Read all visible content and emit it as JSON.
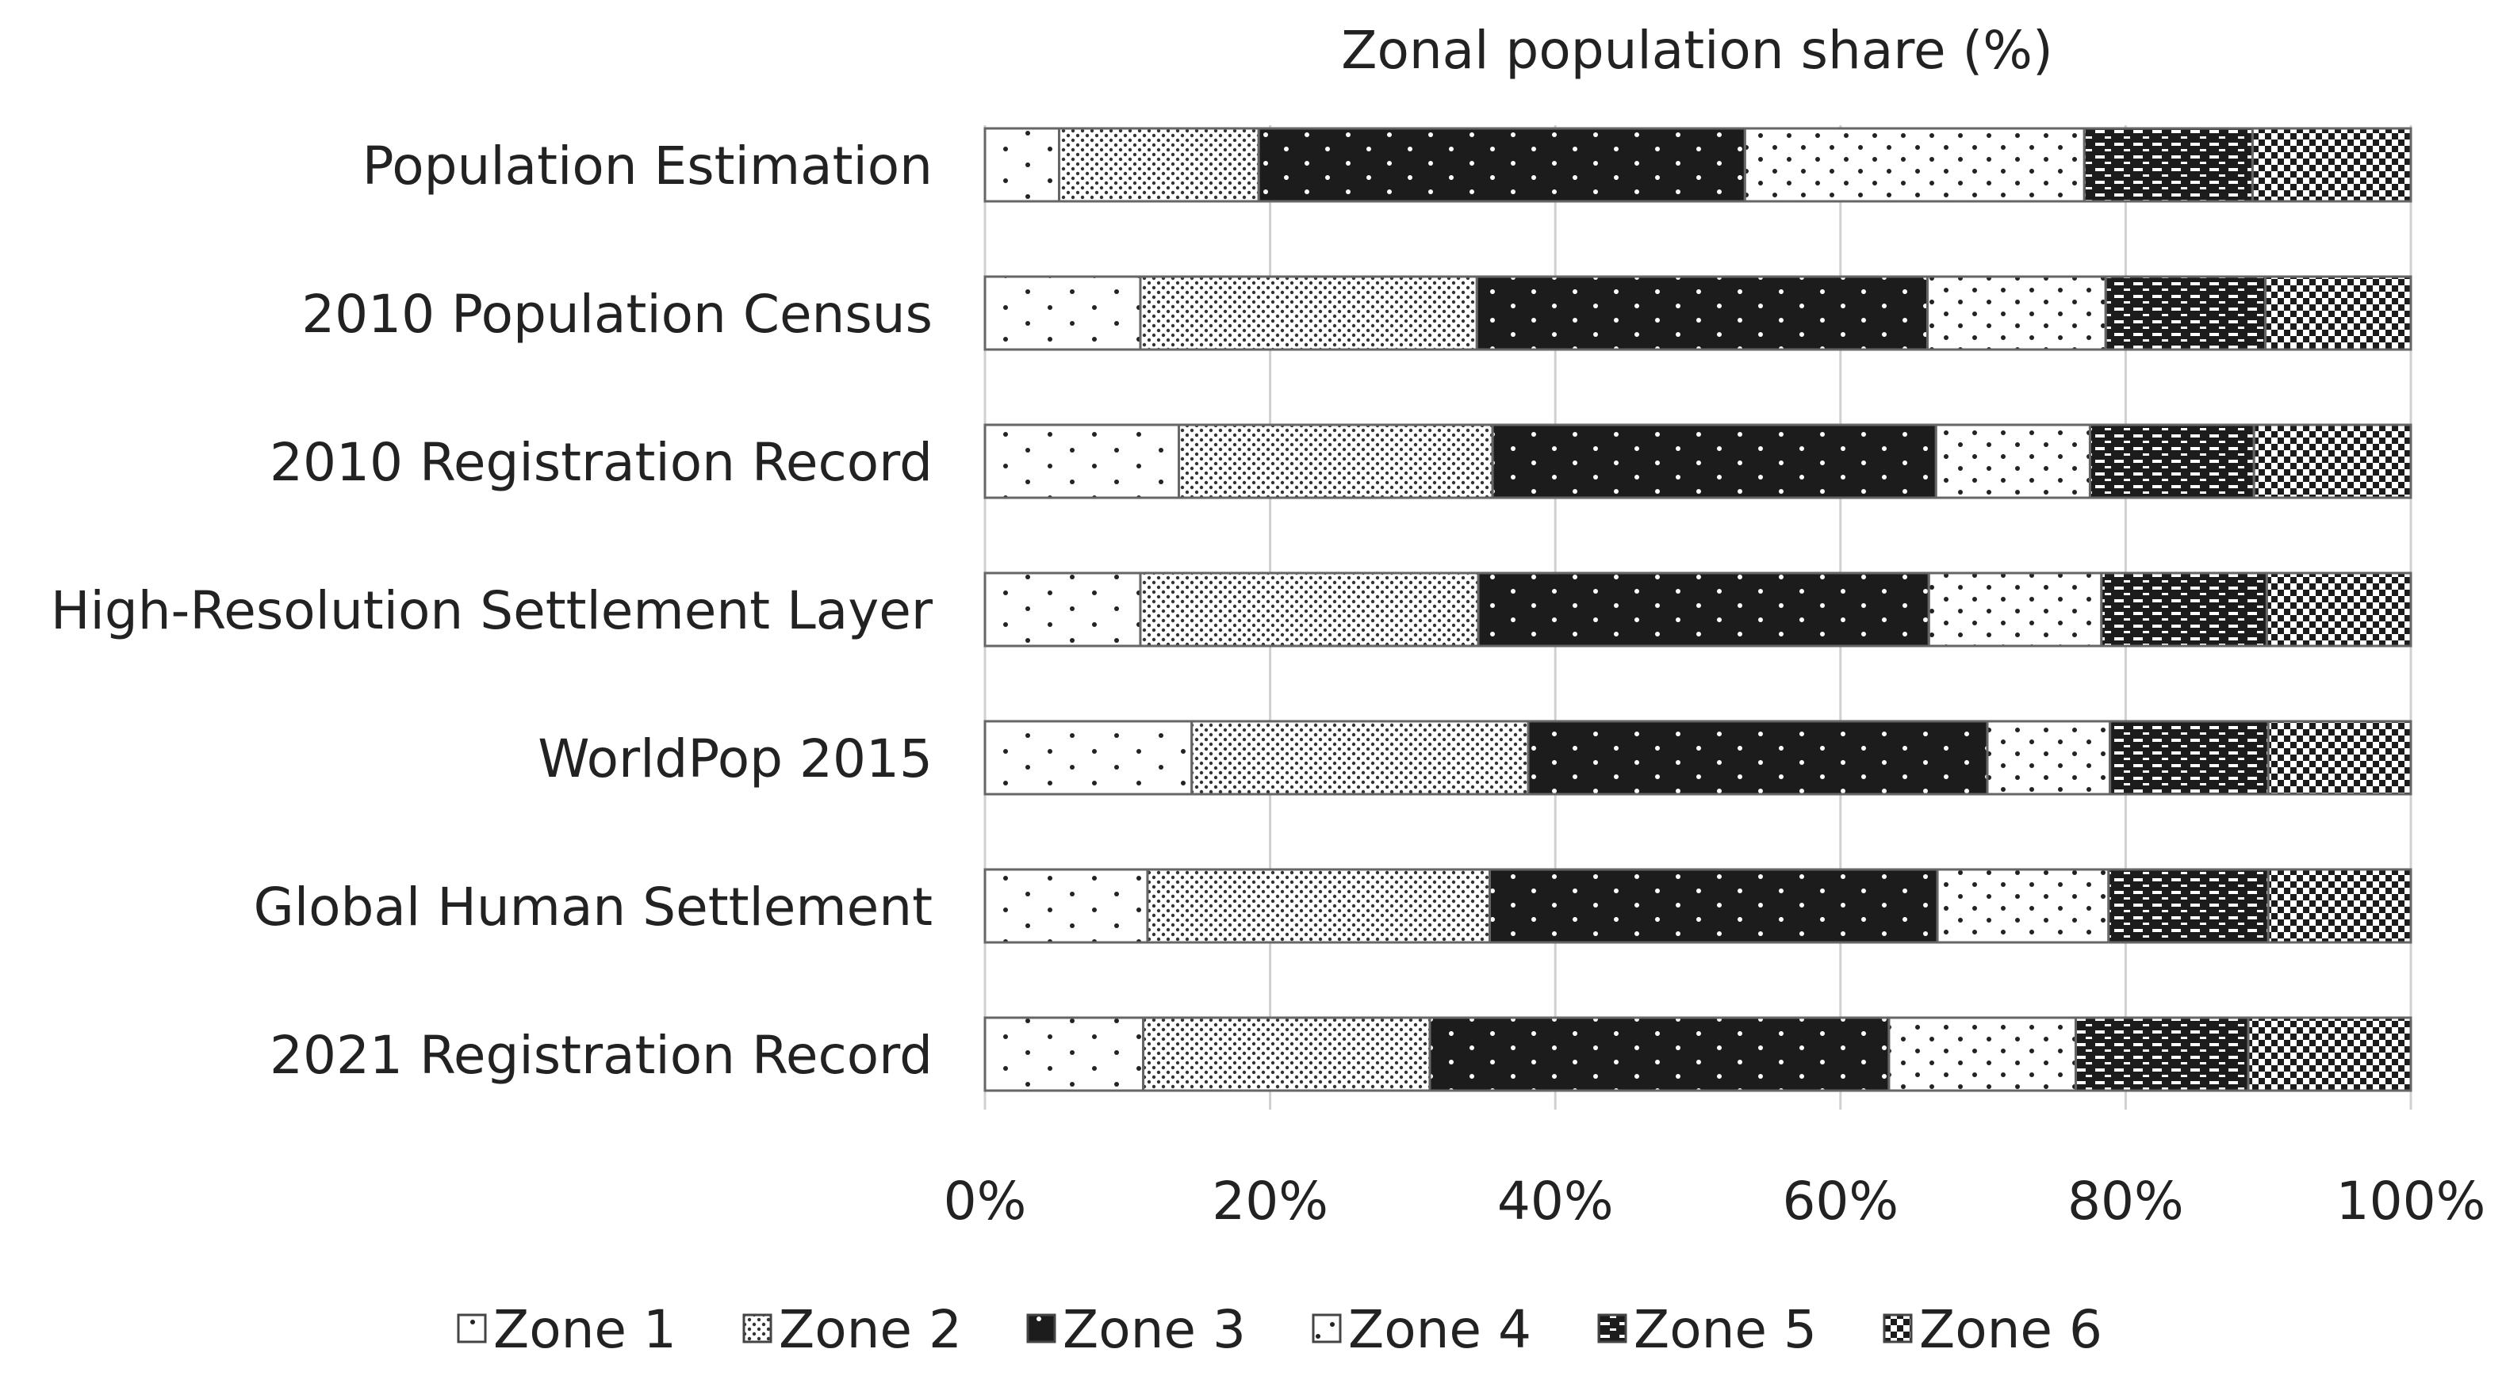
{
  "chart_data": {
    "type": "bar",
    "orientation": "horizontal",
    "stacked": "percent",
    "title": "Zonal population share (%)",
    "xlabel": "",
    "ylabel": "",
    "xlim": [
      0,
      100
    ],
    "x_ticks": [
      "0%",
      "20%",
      "40%",
      "60%",
      "80%",
      "100%"
    ],
    "grid": true,
    "legend_position": "bottom",
    "categories": [
      "Population Estimation",
      "2010 Population Census",
      "2010 Registration Record",
      "High-Resolution Settlement Layer",
      "WorldPop 2015",
      "Global Human Settlement",
      "2021 Registration Record"
    ],
    "series": [
      {
        "name": "Zone 1",
        "pattern": "sparse-dots-white",
        "values": [
          5.2,
          10.9,
          13.6,
          10.9,
          14.5,
          11.4,
          11.1
        ]
      },
      {
        "name": "Zone 2",
        "pattern": "dense-dots-white",
        "values": [
          14.0,
          23.6,
          22.0,
          23.7,
          23.6,
          24.0,
          20.1
        ]
      },
      {
        "name": "Zone 3",
        "pattern": "white-dots-black",
        "values": [
          34.1,
          31.6,
          31.1,
          31.6,
          32.2,
          31.4,
          32.2
        ]
      },
      {
        "name": "Zone 4",
        "pattern": "scattered-dots-white",
        "values": [
          23.8,
          12.5,
          10.8,
          12.1,
          8.6,
          12.0,
          13.1
        ]
      },
      {
        "name": "Zone 5",
        "pattern": "dash-black",
        "values": [
          11.8,
          11.2,
          11.5,
          11.6,
          11.1,
          11.2,
          12.1
        ]
      },
      {
        "name": "Zone 6",
        "pattern": "checker",
        "values": [
          11.1,
          10.2,
          11.0,
          10.1,
          10.0,
          10.0,
          11.4
        ]
      }
    ]
  }
}
